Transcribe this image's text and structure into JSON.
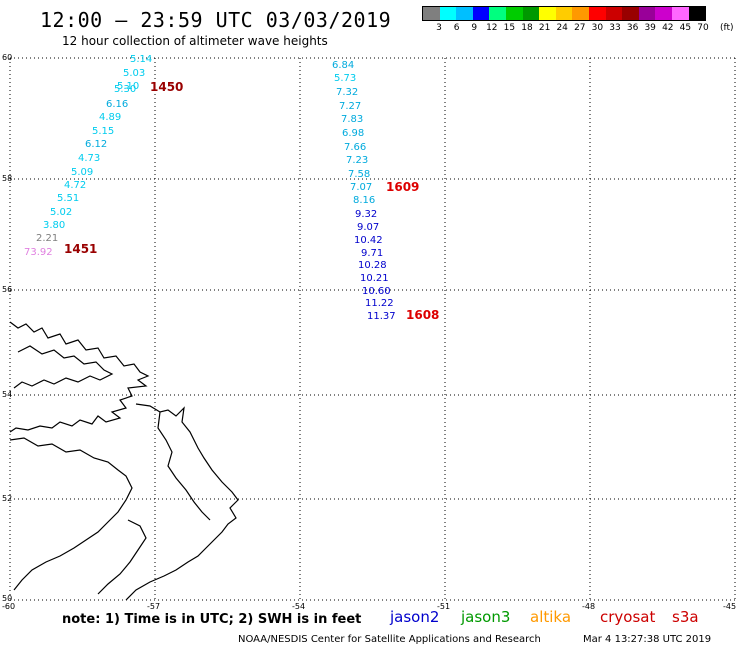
{
  "header": {
    "title": "12:00 – 23:59 UTC 03/03/2019",
    "subtitle": "12 hour collection of altimeter wave heights"
  },
  "colorscale": {
    "colors": [
      "#7f7f7f",
      "#00ffff",
      "#00bfff",
      "#0000ff",
      "#00ff7f",
      "#00cc00",
      "#009900",
      "#ffff00",
      "#ffcc00",
      "#ff9900",
      "#ff0000",
      "#cc0000",
      "#990000",
      "#990099",
      "#cc00cc",
      "#ff66ff",
      "#000000"
    ],
    "labels": [
      "3",
      "6",
      "9",
      "12",
      "15",
      "18",
      "21",
      "24",
      "27",
      "30",
      "33",
      "36",
      "39",
      "42",
      "45",
      "70"
    ],
    "unit": "(ft)"
  },
  "axes": {
    "lat_labels": [
      "60",
      "58",
      "56",
      "54",
      "52",
      "50"
    ],
    "lon_labels": [
      "-60",
      "-57",
      "-54",
      "-51",
      "-48",
      "-45"
    ]
  },
  "track_west": {
    "values": [
      "5.14",
      "5.03",
      "5.10",
      "5.30",
      "6.16",
      "4.89",
      "5.15",
      "6.12",
      "4.73",
      "5.09",
      "4.72",
      "5.51",
      "5.02",
      "3.80",
      "2.21",
      "73.92"
    ],
    "times": [
      "1450",
      "1451"
    ]
  },
  "track_east": {
    "values": [
      "6.84",
      "5.73",
      "7.32",
      "7.27",
      "7.83",
      "6.98",
      "7.66",
      "7.23",
      "7.58",
      "7.07",
      "8.16",
      "9.32",
      "9.07",
      "10.42",
      "9.71",
      "10.28",
      "10.21",
      "10.60",
      "11.22",
      "11.37"
    ],
    "times": [
      "1609",
      "1608"
    ]
  },
  "footer": {
    "note": "note: 1) Time is in UTC; 2) SWH is in feet",
    "satellites": [
      "jason2",
      "jason3",
      "altika",
      "cryosat",
      "s3a"
    ],
    "satellite_colors": [
      "#0000cc",
      "#009900",
      "#ff9900",
      "#cc0000",
      "#cc0000"
    ],
    "credit": "NOAA/NESDIS Center for Satellite Applications and Research",
    "timestamp": "Mar  4 13:27:38 UTC 2019"
  }
}
